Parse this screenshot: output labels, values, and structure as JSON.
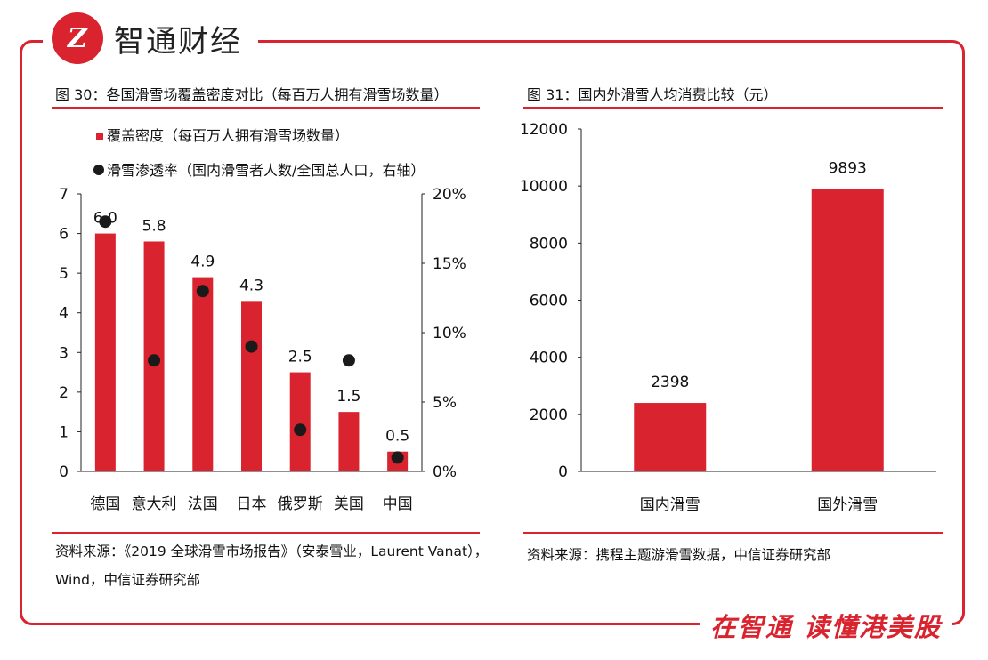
{
  "brand": {
    "logo_text": "Z",
    "name": "智通财经",
    "slogan": "在智通  读懂港美股"
  },
  "colors": {
    "accent": "#d9232e",
    "dot": "#1a1a1a"
  },
  "left": {
    "title": "图 30：各国滑雪场覆盖密度对比（每百万人拥有滑雪场数量）",
    "source_line1": "资料来源：《2019 全球滑雪市场报告》（安泰雪业，Laurent Vanat），",
    "source_line2": "Wind，中信证券研究部"
  },
  "right": {
    "title": "图 31：国内外滑雪人均消费比较（元）",
    "source": "资料来源：携程主题游滑雪数据，中信证券研究部"
  },
  "chart_data": [
    {
      "type": "bar",
      "title": "各国滑雪场覆盖密度对比（每百万人拥有滑雪场数量）",
      "categories": [
        "德国",
        "意大利",
        "法国",
        "日本",
        "俄罗斯",
        "美国",
        "中国"
      ],
      "series": [
        {
          "name": "覆盖密度（每百万人拥有滑雪场数量）",
          "kind": "bar",
          "axis": "left",
          "values": [
            6.0,
            5.8,
            4.9,
            4.3,
            2.5,
            1.5,
            0.5
          ],
          "labels": [
            "6.0",
            "5.8",
            "4.9",
            "4.3",
            "2.5",
            "1.5",
            "0.5"
          ]
        },
        {
          "name": "滑雪渗透率（国内滑雪者人数/全国总人口，右轴）",
          "kind": "scatter",
          "axis": "right",
          "values": [
            0.18,
            0.08,
            0.13,
            0.09,
            0.03,
            0.08,
            0.01
          ]
        }
      ],
      "ylim": [
        0,
        7
      ],
      "yticks": [
        "0",
        "1",
        "2",
        "3",
        "4",
        "5",
        "6",
        "7"
      ],
      "y2lim": [
        0,
        0.2
      ],
      "y2ticks": [
        "0%",
        "5%",
        "10%",
        "15%",
        "20%"
      ],
      "legend": "top-left"
    },
    {
      "type": "bar",
      "title": "国内外滑雪人均消费比较（元）",
      "categories": [
        "国内滑雪",
        "国外滑雪"
      ],
      "values": [
        2398,
        9893
      ],
      "labels": [
        "2398",
        "9893"
      ],
      "ylim": [
        0,
        12000
      ],
      "yticks": [
        "0",
        "2000",
        "4000",
        "6000",
        "8000",
        "10000",
        "12000"
      ]
    }
  ]
}
